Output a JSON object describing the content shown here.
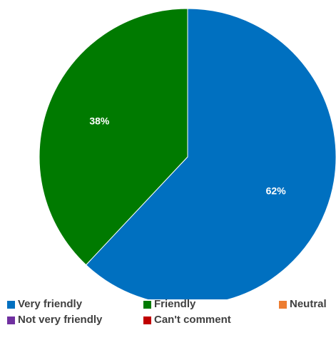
{
  "chart_data": {
    "type": "pie",
    "title": "",
    "slices": [
      {
        "label": "Very friendly",
        "value": 62,
        "display": "62%",
        "color": "#0070C0"
      },
      {
        "label": "Friendly",
        "value": 38,
        "display": "38%",
        "color": "#007A00"
      },
      {
        "label": "Neutral",
        "value": 0,
        "display": "",
        "color": "#ED7D31"
      },
      {
        "label": "Not very friendly",
        "value": 0,
        "display": "",
        "color": "#7030A0"
      },
      {
        "label": "Can't comment",
        "value": 0,
        "display": "",
        "color": "#C00000"
      }
    ],
    "legend_position": "bottom"
  }
}
